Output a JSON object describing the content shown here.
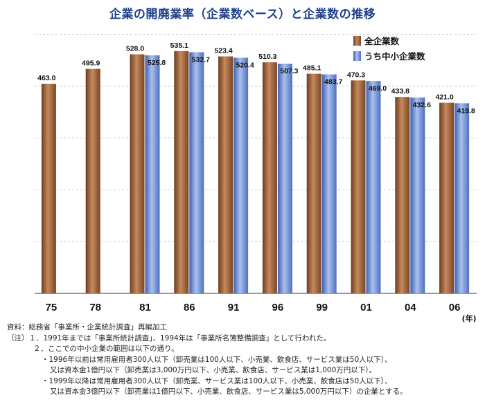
{
  "title": "企業の開廃業率（企業数ベース）と企業数の推移",
  "colors": {
    "all": "#a2643c",
    "sme": "#6b8fd6",
    "title": "#1d3f8a"
  },
  "chart_data": {
    "type": "bar",
    "categories": [
      "75",
      "78",
      "81",
      "86",
      "91",
      "96",
      "99",
      "01",
      "04",
      "06"
    ],
    "x_unit": "(年)",
    "ylim": [
      0,
      540
    ],
    "grid": true,
    "legend_placement": "top-right",
    "series": [
      {
        "name": "全企業数",
        "values": [
          463.0,
          495.9,
          528.0,
          535.1,
          523.4,
          510.3,
          485.1,
          470.3,
          433.8,
          421.0
        ]
      },
      {
        "name": "うち中小企業数",
        "values": [
          null,
          null,
          525.8,
          532.7,
          520.4,
          507.3,
          483.7,
          469.0,
          432.6,
          419.8
        ]
      }
    ]
  },
  "notes": {
    "source": "資料：総務省「事業所・企業統計調査」再編加工",
    "n1": "（注）１．1991年までは「事業所統計調査」、1994年は「事業所名簿整備調査」として行われた。",
    "n2": "２．ここでの中小企業の範囲は以下の通り。",
    "n3": "・1996年以前は常用雇用者300人以下（卸売業は100人以下、小売業、飲食店、サービス業は50人以下）、",
    "n4": "又は資本金1億円以下（卸売業は3,000万円以下、小売業、飲食店、サービス業は1,000万円以下）。",
    "n5": "・1999年以降は常用雇用者300人以下（卸売業、サービス業は100人以下、小売業、飲食店は50人以下）、",
    "n6": "又は資本金3億円以下（卸売業は1億円以下、小売業、飲食店、サービス業は5,000万円以下）の企業とする。"
  }
}
